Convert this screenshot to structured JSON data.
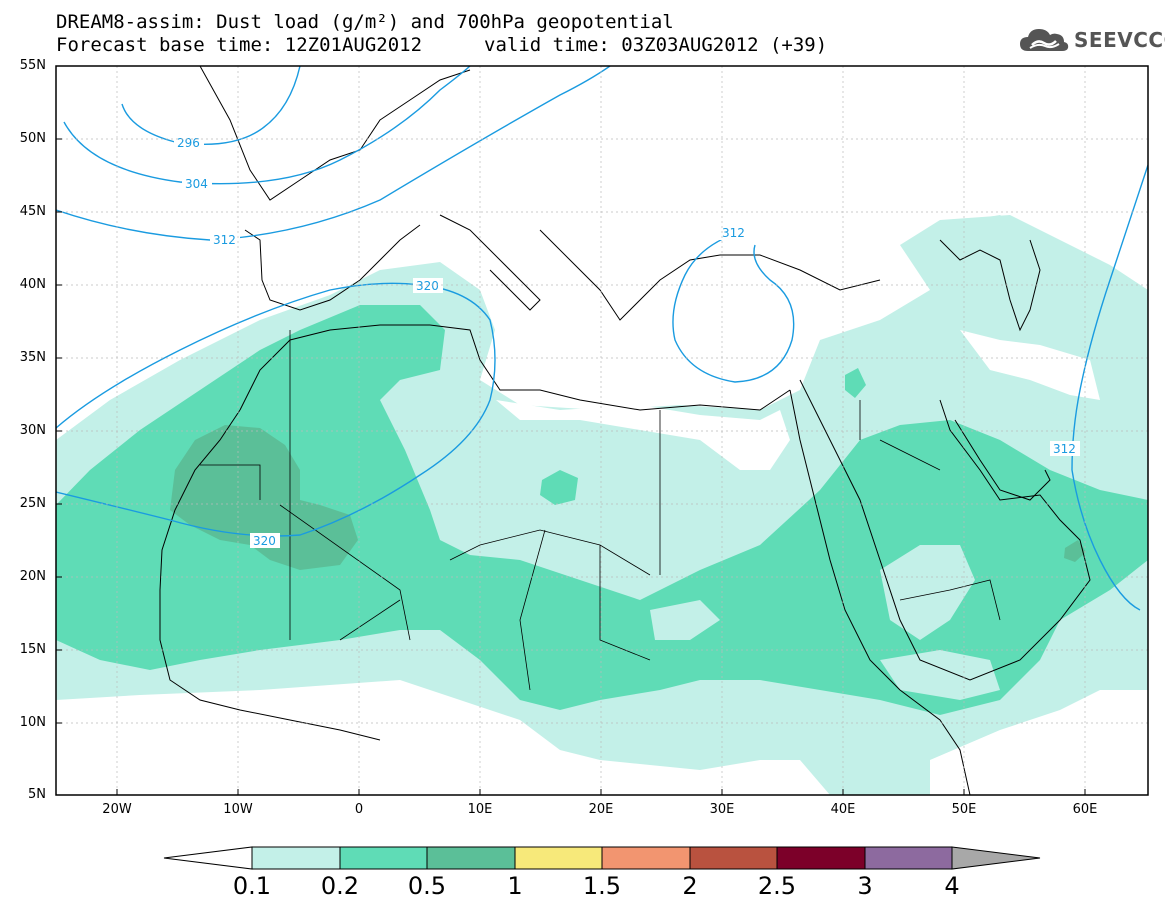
{
  "header": {
    "title_line1": "DREAM8-assim: Dust load (g/m²) and 700hPa geopotential",
    "title_line2": "Forecast base time: 12Z01AUG2012",
    "valid_time": "valid time: 03Z03AUG2012 (+39)",
    "logo_text": "SEEVCCC",
    "logo_icon": "cloud-icon"
  },
  "map": {
    "lat_labels": [
      "55N",
      "50N",
      "45N",
      "40N",
      "35N",
      "30N",
      "25N",
      "20N",
      "15N",
      "10N",
      "5N"
    ],
    "lon_labels": [
      "20W",
      "10W",
      "0",
      "10E",
      "20E",
      "30E",
      "40E",
      "50E",
      "60E"
    ],
    "contour_labels": [
      "296",
      "304",
      "312",
      "320",
      "312",
      "312",
      "320"
    ],
    "contour_color": "#1a9be0"
  },
  "colorbar": {
    "labels": [
      "0.1",
      "0.2",
      "0.5",
      "1",
      "1.5",
      "2",
      "2.5",
      "3",
      "4"
    ],
    "colors": [
      "#c3f0e8",
      "#5fdcb6",
      "#5bbf98",
      "#f7e97a",
      "#f29570",
      "#b9523f",
      "#7c0029",
      "#8d6a9f",
      "#a8a8a8"
    ],
    "under_color": "#ffffff",
    "over_color": "#a8a8a8"
  }
}
